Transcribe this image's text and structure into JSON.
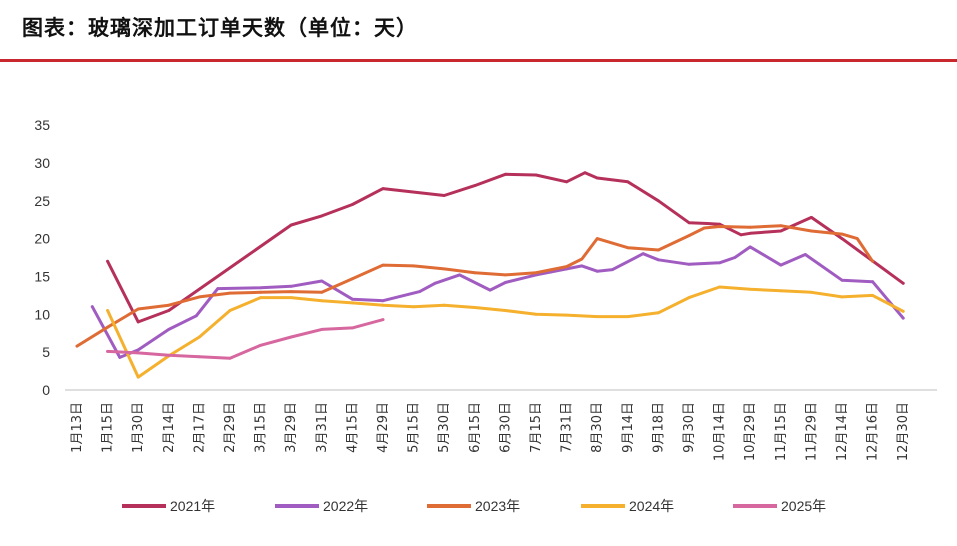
{
  "header": {
    "title": "图表：玻璃深加工订单天数（单位：天）"
  },
  "chart_data": {
    "type": "line",
    "title": "图表：玻璃深加工订单天数（单位：天）",
    "xlabel": "",
    "ylabel": "",
    "ylim": [
      0,
      35
    ],
    "yticks": [
      0,
      5,
      10,
      15,
      20,
      25,
      30,
      35
    ],
    "grid": false,
    "legend_placement": "bottom",
    "categories": [
      "1月13日",
      "1月15日",
      "1月30日",
      "2月14日",
      "2月17日",
      "2月29日",
      "3月15日",
      "3月29日",
      "3月31日",
      "4月15日",
      "4月29日",
      "5月15日",
      "5月30日",
      "6月15日",
      "6月30日",
      "7月15日",
      "7月31日",
      "8月30日",
      "9月14日",
      "9月18日",
      "9月30日",
      "10月14日",
      "10月29日",
      "11月15日",
      "11月29日",
      "12月14日",
      "12月16日",
      "12月30日"
    ],
    "series": [
      {
        "name": "2021年",
        "color": "#b5305a",
        "x": [
          1.0,
          2.0,
          3.0,
          7.0,
          8.0,
          9.0,
          10.0,
          12.0,
          13.0,
          14.0,
          15.0,
          16.0,
          16.6,
          17.0,
          18.0,
          19.0,
          20.0,
          20.6,
          21.0,
          21.7,
          22.0,
          23.0,
          24.0,
          25.0,
          27.0
        ],
        "values": [
          17.0,
          9.0,
          10.5,
          21.8,
          23.0,
          24.5,
          26.6,
          25.7,
          27.0,
          28.5,
          28.4,
          27.5,
          28.7,
          28.0,
          27.5,
          25.0,
          22.1,
          22.0,
          21.9,
          20.5,
          20.7,
          21.0,
          22.8,
          20.0,
          14.1
        ]
      },
      {
        "name": "2022年",
        "color": "#a05cc0",
        "x": [
          0.5,
          1.4,
          2.0,
          3.0,
          3.9,
          4.6,
          6.0,
          7.0,
          8.0,
          9.0,
          10.0,
          11.2,
          11.7,
          12.5,
          13.5,
          14.0,
          15.0,
          15.5,
          16.0,
          16.5,
          17.0,
          17.5,
          18.5,
          19.0,
          20.0,
          21.0,
          21.5,
          22.0,
          23.0,
          23.8,
          25.0,
          26.0,
          27.0
        ],
        "values": [
          11.0,
          4.3,
          5.3,
          8.0,
          9.8,
          13.4,
          13.5,
          13.7,
          14.4,
          12.0,
          11.8,
          13.0,
          14.1,
          15.2,
          13.2,
          14.2,
          15.2,
          15.6,
          16.0,
          16.4,
          15.7,
          15.9,
          18.0,
          17.2,
          16.6,
          16.8,
          17.5,
          18.9,
          16.5,
          17.9,
          14.5,
          14.3,
          9.5
        ]
      },
      {
        "name": "2023年",
        "color": "#df6b35",
        "x": [
          0.0,
          1.0,
          2.0,
          3.0,
          4.0,
          5.0,
          6.0,
          7.0,
          8.0,
          9.0,
          10.0,
          11.0,
          12.0,
          13.0,
          14.0,
          15.0,
          16.0,
          16.5,
          17.0,
          18.0,
          19.0,
          20.0,
          20.5,
          21.0,
          22.0,
          23.0,
          24.0,
          25.0,
          25.5,
          26.0
        ],
        "values": [
          5.8,
          8.3,
          10.7,
          11.2,
          12.3,
          12.8,
          12.9,
          13.0,
          12.9,
          14.7,
          16.5,
          16.4,
          16.0,
          15.5,
          15.2,
          15.5,
          16.3,
          17.3,
          20.0,
          18.8,
          18.5,
          20.4,
          21.4,
          21.6,
          21.5,
          21.7,
          21.0,
          20.6,
          20.0,
          17.0
        ]
      },
      {
        "name": "2024年",
        "color": "#f5b02e",
        "x": [
          1.0,
          2.0,
          3.0,
          4.0,
          5.0,
          6.0,
          7.0,
          8.0,
          9.0,
          10.0,
          11.0,
          12.0,
          13.0,
          14.0,
          15.0,
          16.0,
          17.0,
          18.0,
          19.0,
          20.0,
          21.0,
          22.0,
          23.0,
          24.0,
          25.0,
          26.0,
          27.0
        ],
        "values": [
          10.5,
          1.7,
          4.5,
          7.0,
          10.5,
          12.2,
          12.2,
          11.8,
          11.5,
          11.2,
          11.0,
          11.2,
          10.9,
          10.5,
          10.0,
          9.9,
          9.7,
          9.7,
          10.2,
          12.2,
          13.6,
          13.3,
          13.1,
          12.9,
          12.3,
          12.5,
          10.4
        ]
      },
      {
        "name": "2025年",
        "color": "#d6679f",
        "x": [
          1.0,
          2.0,
          3.0,
          4.0,
          5.0,
          6.0,
          7.0,
          8.0,
          9.0,
          10.0
        ],
        "values": [
          5.1,
          4.9,
          4.6,
          4.4,
          4.2,
          5.9,
          7.0,
          8.0,
          8.2,
          9.3
        ]
      }
    ]
  }
}
